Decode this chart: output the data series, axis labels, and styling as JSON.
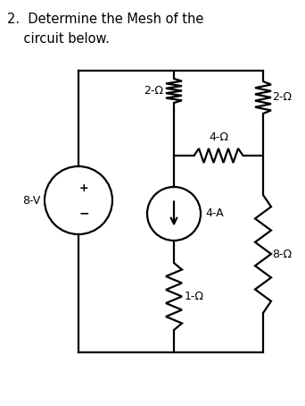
{
  "title_line1": "2.  Determine the Mesh of the",
  "title_line2": "    circuit below.",
  "bg_color": "#ffffff",
  "line_color": "#000000",
  "lw": 1.6,
  "fig_width": 3.42,
  "fig_height": 4.54,
  "dpi": 100,
  "labels": {
    "2ohm_top_left": "2-Ω",
    "2ohm_top_right": "2-Ω",
    "4ohm_mid": "4-Ω",
    "8ohm_right": "8-Ω",
    "1ohm_bot": "1-Ω",
    "8V": "8-V",
    "4A": "4-A"
  }
}
